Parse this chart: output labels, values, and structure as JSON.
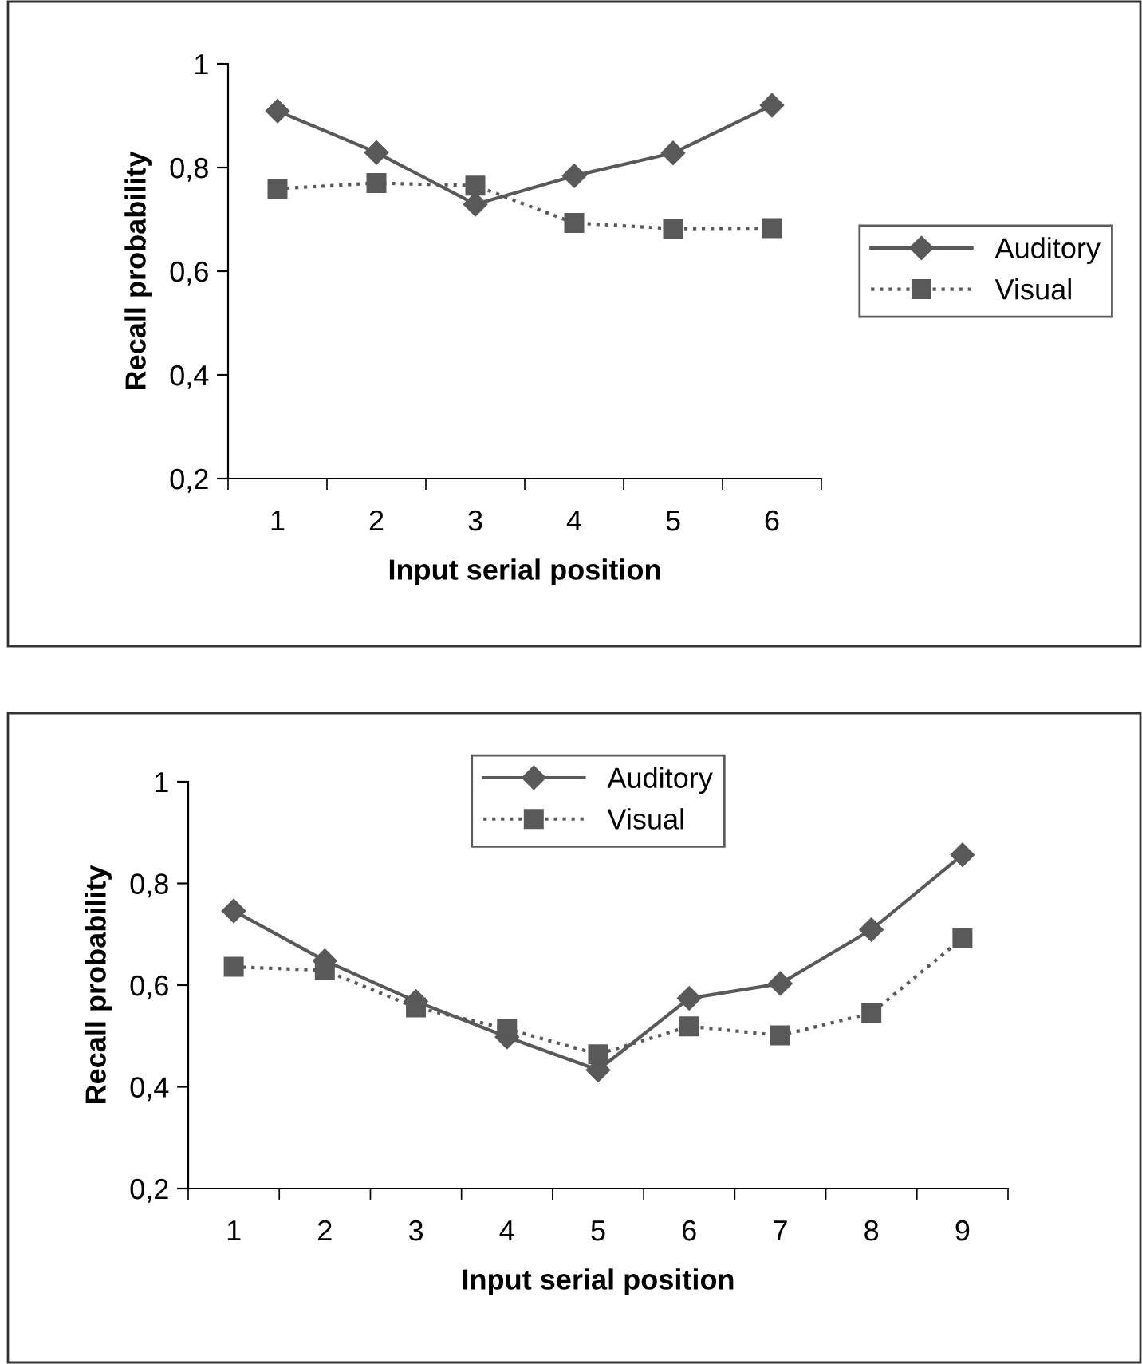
{
  "chart_data": [
    {
      "type": "line",
      "xlabel": "Input serial position",
      "ylabel": "Recall probability",
      "categories": [
        "1",
        "2",
        "3",
        "4",
        "5",
        "6"
      ],
      "ylim": [
        0.2,
        1
      ],
      "yticks": [
        {
          "value": 0.2,
          "label": "0,2"
        },
        {
          "value": 0.4,
          "label": "0,4"
        },
        {
          "value": 0.6,
          "label": "0,6"
        },
        {
          "value": 0.8,
          "label": "0,8"
        },
        {
          "value": 1,
          "label": "1"
        }
      ],
      "grid": false,
      "legend": "right",
      "series": [
        {
          "name": "Auditory",
          "color": "#595959",
          "marker": "diamond",
          "line_style": "solid",
          "values": [
            0.909,
            0.829,
            0.729,
            0.784,
            0.828,
            0.92
          ]
        },
        {
          "name": "Visual",
          "color": "#595959",
          "marker": "square",
          "line_style": "dotted",
          "values": [
            0.759,
            0.77,
            0.765,
            0.693,
            0.682,
            0.683
          ]
        }
      ]
    },
    {
      "type": "line",
      "xlabel": "Input serial position",
      "ylabel": "Recall probability",
      "categories": [
        "1",
        "2",
        "3",
        "4",
        "5",
        "6",
        "7",
        "8",
        "9"
      ],
      "ylim": [
        0.2,
        1
      ],
      "yticks": [
        {
          "value": 0.2,
          "label": "0,2"
        },
        {
          "value": 0.4,
          "label": "0,4"
        },
        {
          "value": 0.6,
          "label": "0,6"
        },
        {
          "value": 0.8,
          "label": "0,8"
        },
        {
          "value": 1,
          "label": "1"
        }
      ],
      "grid": false,
      "legend": "top",
      "series": [
        {
          "name": "Auditory",
          "color": "#595959",
          "marker": "diamond",
          "line_style": "solid",
          "values": [
            0.746,
            0.648,
            0.568,
            0.498,
            0.433,
            0.574,
            0.603,
            0.709,
            0.856
          ]
        },
        {
          "name": "Visual",
          "color": "#595959",
          "marker": "square",
          "line_style": "dotted",
          "values": [
            0.636,
            0.629,
            0.556,
            0.514,
            0.464,
            0.519,
            0.501,
            0.545,
            0.692
          ]
        }
      ]
    }
  ]
}
